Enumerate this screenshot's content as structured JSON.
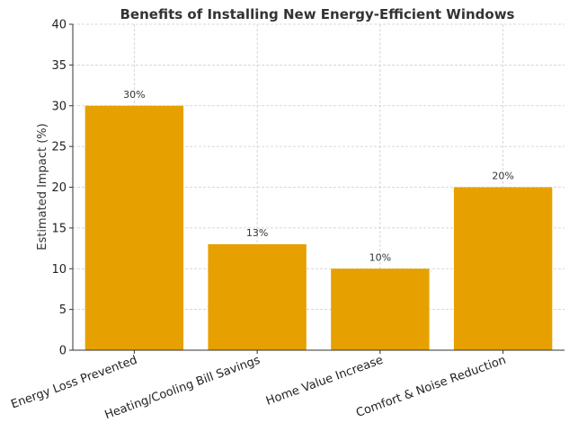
{
  "chart_data": {
    "type": "bar",
    "title": "Benefits of Installing New Energy-Efficient Windows",
    "xlabel": "",
    "ylabel": "Estimated Impact (%)",
    "categories": [
      "Energy Loss Prevented",
      "Heating/Cooling Bill Savings",
      "Home Value Increase",
      "Comfort & Noise Reduction"
    ],
    "values": [
      30,
      13,
      10,
      20
    ],
    "data_labels": [
      "30%",
      "13%",
      "10%",
      "20%"
    ],
    "ylim": [
      0,
      40
    ],
    "yticks": [
      0,
      5,
      10,
      15,
      20,
      25,
      30,
      35,
      40
    ],
    "bar_color": "#e6a000",
    "grid": true
  }
}
